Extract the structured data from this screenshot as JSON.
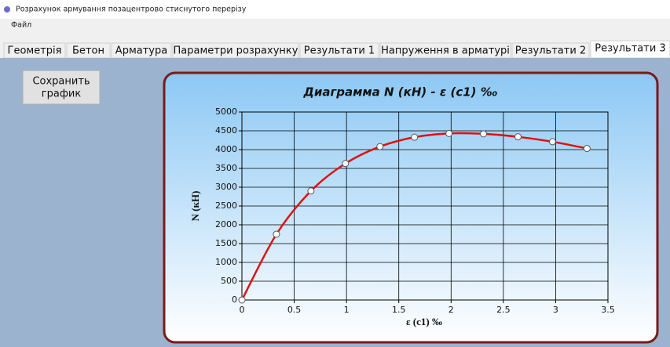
{
  "window": {
    "title": "Розрахунок армування позацентрово стиснутого перерізу"
  },
  "menu": [
    "Файл"
  ],
  "tabs": [
    "Геометрія",
    "Бетон",
    "Арматура",
    "Параметри розрахунку",
    "Результати 1",
    "Напруження в арматурі",
    "Результати 2",
    "Результати 3"
  ],
  "selected_tab": 7,
  "button": {
    "label_lines": [
      "Сохранить",
      "график"
    ]
  },
  "chart_data": {
    "type": "line",
    "title": "Диаграмма N (кН) - ε (с1) ‰",
    "x_label": "ε (с1) ‰",
    "y_label": "N (кН)",
    "x": [
      0,
      0.33,
      0.66,
      0.99,
      1.32,
      1.65,
      1.98,
      2.31,
      2.64,
      2.97,
      3.3
    ],
    "values": [
      0,
      1750,
      2900,
      3630,
      4080,
      4330,
      4430,
      4420,
      4340,
      4210,
      4030
    ],
    "color": "#e01010",
    "smooth": true,
    "markers": true,
    "xlim": [
      0,
      3.5
    ],
    "xticks": [
      0,
      0.5,
      1,
      1.5,
      2,
      2.5,
      3,
      3.5
    ],
    "ylim": [
      0,
      5000
    ],
    "yticks": [
      0,
      500,
      1000,
      1500,
      2000,
      2500,
      3000,
      3500,
      4000,
      4500,
      5000
    ],
    "grid": true
  }
}
